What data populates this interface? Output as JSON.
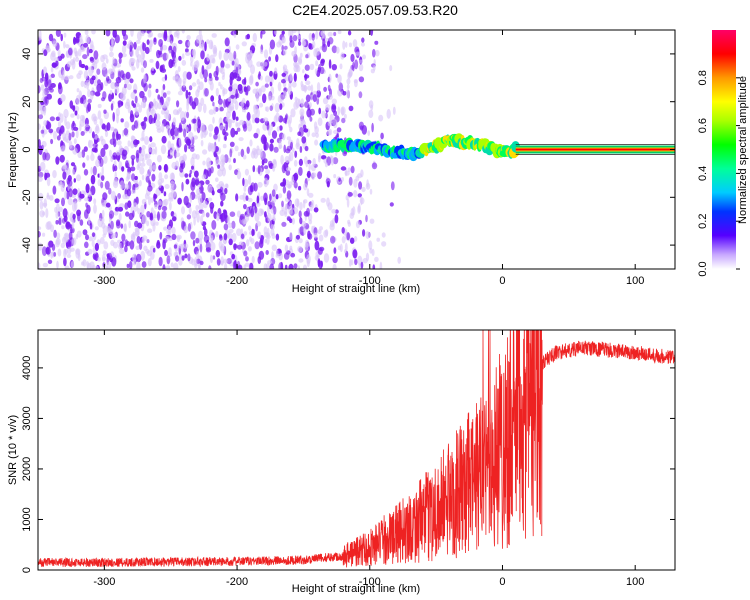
{
  "title": "C2E4.2025.057.09.53.R20",
  "colorbar_label": "Normalized spectral amplitude",
  "colors": {
    "snr_line": "#ee2222",
    "spectro_scatter": "#7a1cf0",
    "spectro_light": "#d8c4f8"
  },
  "chart_data": [
    {
      "type": "heatmap",
      "xlabel": "Height of straight line (km)",
      "ylabel": "Frequency (Hz)",
      "xlim": [
        -350,
        130
      ],
      "ylim": [
        -50,
        50
      ],
      "x_ticks": [
        "-300",
        "-200",
        "-100",
        "0",
        "100"
      ],
      "y_ticks": [
        "-40",
        "-20",
        "0",
        "20",
        "40"
      ],
      "grid": false,
      "colorbar": {
        "label": "Normalized spectral amplitude",
        "range": [
          0.0,
          1.0
        ],
        "ticks": [
          "0.0",
          "0.2",
          "0.4",
          "0.6",
          "0.8"
        ]
      },
      "noise_region_x": [
        -350,
        -95
      ],
      "signal_track": {
        "x": [
          -135,
          -120,
          -100,
          -85,
          -70,
          -55,
          -40,
          -25,
          -15,
          -5,
          5,
          10,
          50,
          130
        ],
        "y": [
          1,
          2,
          1,
          -1,
          -2,
          0,
          4,
          3,
          2,
          0,
          -1,
          0,
          0,
          0
        ]
      }
    },
    {
      "type": "line",
      "xlabel": "Height of straight line (km)",
      "ylabel": "SNR (10 * v/v)",
      "xlim": [
        -350,
        130
      ],
      "ylim": [
        0,
        4750
      ],
      "x_ticks": [
        "-300",
        "-200",
        "-100",
        "0",
        "100"
      ],
      "y_ticks": [
        "0",
        "1000",
        "2000",
        "3000",
        "4000"
      ],
      "grid": false,
      "envelope": {
        "x": [
          -350,
          -300,
          -200,
          -150,
          -120,
          -100,
          -80,
          -60,
          -40,
          -20,
          -10,
          0,
          10,
          20,
          30,
          40,
          60,
          80,
          100,
          130
        ],
        "y": [
          150,
          150,
          170,
          200,
          280,
          450,
          700,
          1000,
          1400,
          1800,
          2100,
          2500,
          3000,
          3400,
          4100,
          4300,
          4400,
          4350,
          4300,
          4200
        ]
      }
    }
  ]
}
